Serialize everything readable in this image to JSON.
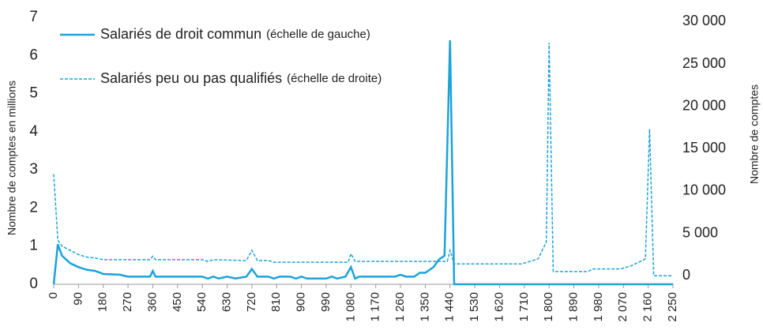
{
  "chart_data": {
    "type": "line",
    "y_label": "Nombre de comptes en millions",
    "y2_label": "Nombre de comptes",
    "xlim": [
      0,
      2250
    ],
    "xticks": [
      0,
      90,
      180,
      270,
      360,
      450,
      540,
      630,
      720,
      810,
      900,
      990,
      {
        "value": 1080,
        "label": "1 080"
      },
      {
        "value": 1170,
        "label": "1 170"
      },
      {
        "value": 1260,
        "label": "1 260"
      },
      {
        "value": 1350,
        "label": "1 350"
      },
      {
        "value": 1440,
        "label": "1 440"
      },
      {
        "value": 1530,
        "label": "1 530"
      },
      {
        "value": 1620,
        "label": "1 620"
      },
      {
        "value": 1710,
        "label": "1 710"
      },
      {
        "value": 1800,
        "label": "1 800"
      },
      {
        "value": 1890,
        "label": "1 890"
      },
      {
        "value": 1980,
        "label": "1 980"
      },
      {
        "value": 2070,
        "label": "2 070"
      },
      {
        "value": 2160,
        "label": "2 160"
      },
      {
        "value": 2250,
        "label": "2 250"
      }
    ],
    "ylim": [
      0,
      7
    ],
    "yticks": [
      0,
      1,
      2,
      3,
      4,
      5,
      6,
      7
    ],
    "y2lim": [
      -1000,
      30500
    ],
    "y2ticks": [
      0,
      {
        "value": 5000,
        "label": "5 000"
      },
      {
        "value": 10000,
        "label": "10 000"
      },
      {
        "value": 15000,
        "label": "15 000"
      },
      {
        "value": 20000,
        "label": "20 000"
      },
      {
        "value": 25000,
        "label": "25 000"
      },
      {
        "value": 30000,
        "label": "30 000"
      }
    ],
    "series": [
      {
        "name": "Salariés de droit commun",
        "scale_note": "(échelle de gauche)",
        "color": "#1ba3d8",
        "dashed": false,
        "x": [
          0,
          15,
          30,
          60,
          90,
          120,
          150,
          170,
          180,
          240,
          270,
          350,
          360,
          370,
          540,
          560,
          580,
          600,
          630,
          660,
          700,
          720,
          740,
          780,
          800,
          820,
          860,
          880,
          900,
          920,
          990,
          1010,
          1030,
          1060,
          1080,
          1095,
          1110,
          1240,
          1260,
          1280,
          1310,
          1330,
          1350,
          1380,
          1400,
          1420,
          1440,
          1455,
          2250
        ],
        "values": [
          0,
          1.05,
          0.75,
          0.55,
          0.45,
          0.38,
          0.35,
          0.3,
          0.27,
          0.25,
          0.2,
          0.2,
          0.35,
          0.2,
          0.2,
          0.15,
          0.2,
          0.15,
          0.2,
          0.15,
          0.2,
          0.4,
          0.2,
          0.2,
          0.15,
          0.2,
          0.2,
          0.15,
          0.2,
          0.15,
          0.15,
          0.2,
          0.15,
          0.2,
          0.45,
          0.15,
          0.2,
          0.2,
          0.25,
          0.2,
          0.2,
          0.3,
          0.3,
          0.45,
          0.65,
          0.75,
          6.4,
          0,
          0
        ]
      },
      {
        "name": "Salariés peu ou pas qualifiés",
        "scale_note": "(échelle de droite)",
        "color": "#1ba3d8",
        "dashed": true,
        "axis": "y2",
        "x": [
          0,
          15,
          30,
          60,
          90,
          120,
          150,
          180,
          350,
          360,
          370,
          540,
          560,
          580,
          700,
          720,
          740,
          780,
          800,
          1070,
          1080,
          1095,
          1430,
          1440,
          1455,
          1700,
          1760,
          1790,
          1800,
          1815,
          1940,
          1960,
          2060,
          2100,
          2150,
          2165,
          2180,
          2250
        ],
        "values": [
          12000,
          4200,
          3500,
          3000,
          2500,
          2200,
          2100,
          1900,
          1900,
          2300,
          1900,
          1900,
          1700,
          1900,
          1800,
          3000,
          1800,
          1800,
          1600,
          1600,
          2600,
          1700,
          1700,
          3000,
          1400,
          1400,
          2000,
          4000,
          27500,
          500,
          500,
          800,
          800,
          1200,
          2000,
          17300,
          0,
          0
        ]
      }
    ]
  }
}
